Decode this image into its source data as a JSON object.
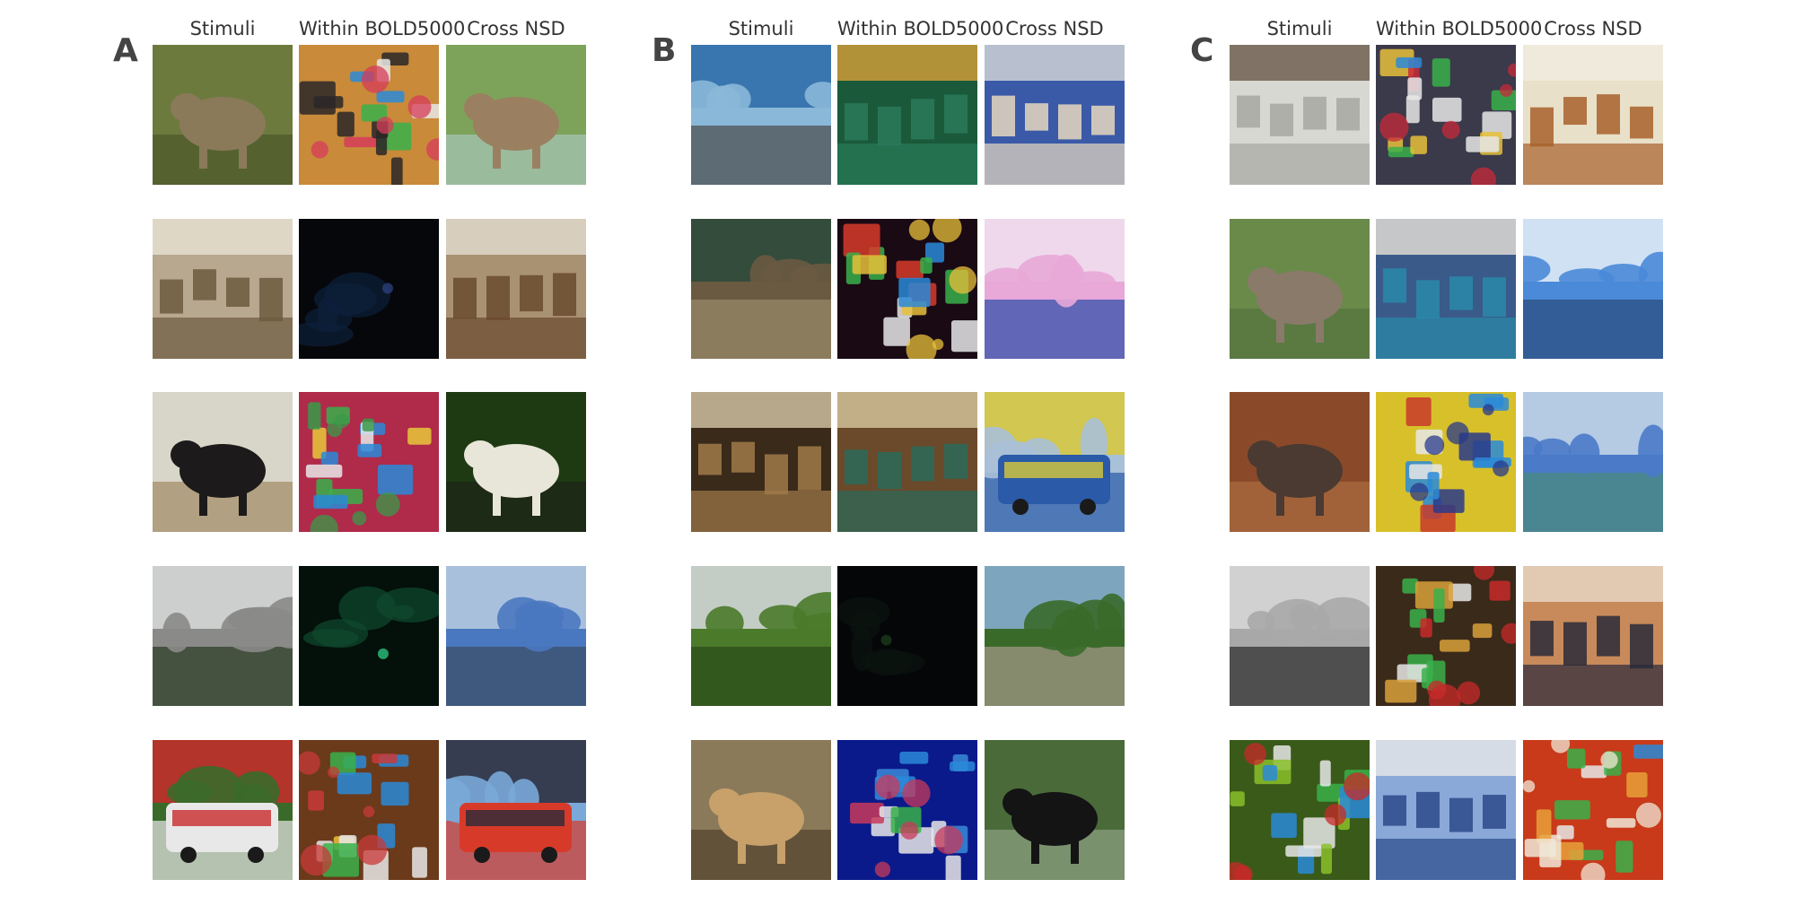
{
  "panels": [
    {
      "letter": "A",
      "headers": [
        "Stimuli",
        "Within BOLD5000",
        "Cross NSD"
      ],
      "rows": [
        [
          {
            "icon": "elephant-photo",
            "bg": "#6d7a3e",
            "fg": "#8a7a5a",
            "accent": "#3e4a22",
            "kind": "animal"
          },
          {
            "icon": "horse-toys-photo",
            "bg": "#c98a3a",
            "fg": "#2a2628",
            "accent": "#d63b5a",
            "kind": "clutter"
          },
          {
            "icon": "horses-field-photo",
            "bg": "#7da35a",
            "fg": "#9a8060",
            "accent": "#b9d3e0",
            "kind": "animal"
          }
        ],
        [
          {
            "icon": "classroom-photo",
            "bg": "#b8a890",
            "fg": "#6c5a3e",
            "accent": "#e8e2d2",
            "kind": "room"
          },
          {
            "icon": "dark-room-photo",
            "bg": "#06070b",
            "fg": "#0d1f3a",
            "accent": "#2a3e7a",
            "kind": "dark"
          },
          {
            "icon": "hall-interior-photo",
            "bg": "#a89272",
            "fg": "#6a4a2e",
            "accent": "#e2ddd0",
            "kind": "room"
          }
        ],
        [
          {
            "icon": "dog-photo",
            "bg": "#d8d6c8",
            "fg": "#1c1a1a",
            "accent": "#8a6a3a",
            "kind": "animal"
          },
          {
            "icon": "colorful-objects-photo",
            "bg": "#b02a4a",
            "fg": "#e8c83a",
            "accent": "#3a9a4a",
            "kind": "clutter"
          },
          {
            "icon": "zebra-photo",
            "bg": "#1e3a12",
            "fg": "#e8e6d8",
            "accent": "#1a1a1a",
            "kind": "animal"
          }
        ],
        [
          {
            "icon": "street-photo",
            "bg": "#8a8a88",
            "fg": "#2a3a22",
            "accent": "#d8dada",
            "kind": "street"
          },
          {
            "icon": "dark-green-room-photo",
            "bg": "#04100a",
            "fg": "#0e4a2e",
            "accent": "#2ac07a",
            "kind": "dark"
          },
          {
            "icon": "waterfront-photo",
            "bg": "#4a78c0",
            "fg": "#3a4a62",
            "accent": "#b8cce0",
            "kind": "street"
          }
        ],
        [
          {
            "icon": "bus-photo",
            "bg": "#3a6a2a",
            "fg": "#e8e8e8",
            "accent": "#c82a2a",
            "kind": "vehicle"
          },
          {
            "icon": "shop-interior-photo",
            "bg": "#6a3a1a",
            "fg": "#e8c03a",
            "accent": "#c83a3a",
            "kind": "clutter"
          },
          {
            "icon": "fire-truck-photo",
            "bg": "#7aa8d8",
            "fg": "#d83a2a",
            "accent": "#2a2a3a",
            "kind": "vehicle"
          }
        ]
      ]
    },
    {
      "letter": "B",
      "headers": [
        "Stimuli",
        "Within BOLD5000",
        "Cross NSD"
      ],
      "rows": [
        [
          {
            "icon": "cyclist-palms-photo",
            "bg": "#8ab8d8",
            "fg": "#4a4a4a",
            "accent": "#2a6aa8",
            "kind": "street"
          },
          {
            "icon": "green-floor-photo",
            "bg": "#1a5a3a",
            "fg": "#2a7a5a",
            "accent": "#d8a03a",
            "kind": "room"
          },
          {
            "icon": "lab-people-photo",
            "bg": "#3a5aa8",
            "fg": "#e8d8c0",
            "accent": "#d8d8d8",
            "kind": "room"
          }
        ],
        [
          {
            "icon": "skatepark-photo",
            "bg": "#6a5a42",
            "fg": "#9a8a6a",
            "accent": "#2a4a3a",
            "kind": "street"
          },
          {
            "icon": "bright-display-photo",
            "bg": "#1a0a14",
            "fg": "#d83a2a",
            "accent": "#e8c03a",
            "kind": "clutter"
          },
          {
            "icon": "pink-beach-photo",
            "bg": "#e8a8d8",
            "fg": "#2a4aa8",
            "accent": "#f0e0f0",
            "kind": "street"
          }
        ],
        [
          {
            "icon": "barrel-cellar-photo",
            "bg": "#3a2a1a",
            "fg": "#a07a4a",
            "accent": "#d8c8a8",
            "kind": "room"
          },
          {
            "icon": "cafe-interior-photo",
            "bg": "#6a4a2a",
            "fg": "#2a6a5a",
            "accent": "#d8c8a0",
            "kind": "room"
          },
          {
            "icon": "train-photo",
            "bg": "#a8c0d8",
            "fg": "#2a5aa8",
            "accent": "#d8c83a",
            "kind": "vehicle"
          }
        ],
        [
          {
            "icon": "meadow-photo",
            "bg": "#4a7a2a",
            "fg": "#2a4a1a",
            "accent": "#d8dae0",
            "kind": "field"
          },
          {
            "icon": "dark-scene-photo",
            "bg": "#050608",
            "fg": "#0c1410",
            "accent": "#1a3a1a",
            "kind": "dark"
          },
          {
            "icon": "tower-park-photo",
            "bg": "#3a6a2a",
            "fg": "#a89a8a",
            "accent": "#8ab0d8",
            "kind": "field"
          }
        ],
        [
          {
            "icon": "giraffes-photo",
            "bg": "#8a7a5a",
            "fg": "#c8a06a",
            "accent": "#3a2a1a",
            "kind": "animal"
          },
          {
            "icon": "noisy-blue-photo",
            "bg": "#0a1a8a",
            "fg": "#3a8ad8",
            "accent": "#c83a5a",
            "kind": "clutter"
          },
          {
            "icon": "bear-yard-photo",
            "bg": "#4a6a3a",
            "fg": "#141414",
            "accent": "#a8b8a0",
            "kind": "animal"
          }
        ]
      ]
    },
    {
      "letter": "C",
      "headers": [
        "Stimuli",
        "Within BOLD5000",
        "Cross NSD"
      ],
      "rows": [
        [
          {
            "icon": "bathroom-photo",
            "bg": "#d8d8d2",
            "fg": "#a8a8a2",
            "accent": "#6a5a4a",
            "kind": "room"
          },
          {
            "icon": "kitchen-shop-photo",
            "bg": "#3a3a4a",
            "fg": "#e8c03a",
            "accent": "#c82a3a",
            "kind": "clutter"
          },
          {
            "icon": "kitchen-cabinets-photo",
            "bg": "#e8e0c8",
            "fg": "#a8602a",
            "accent": "#f0ece0",
            "kind": "room"
          }
        ],
        [
          {
            "icon": "coyote-photo",
            "bg": "#6a8a4a",
            "fg": "#8a7a6a",
            "accent": "#4a6a3a",
            "kind": "animal"
          },
          {
            "icon": "blue-kitchen-photo",
            "bg": "#3a5a8a",
            "fg": "#2a8aa8",
            "accent": "#e8e2d8",
            "kind": "room"
          },
          {
            "icon": "lake-mountain-photo",
            "bg": "#4a8ad8",
            "fg": "#2a4a7a",
            "accent": "#e8f0f8",
            "kind": "field"
          }
        ],
        [
          {
            "icon": "warthog-photo",
            "bg": "#8a4a2a",
            "fg": "#4a3a32",
            "accent": "#b87a4a",
            "kind": "animal"
          },
          {
            "icon": "colorful-robot-photo",
            "bg": "#d8c02a",
            "fg": "#c83a2a",
            "accent": "#2a3a8a",
            "kind": "clutter"
          },
          {
            "icon": "slope-sky-photo",
            "bg": "#4a7ac8",
            "fg": "#4a8a7a",
            "accent": "#c8d8e8",
            "kind": "field"
          }
        ],
        [
          {
            "icon": "statue-photo",
            "bg": "#a8a8a8",
            "fg": "#2a2a2a",
            "accent": "#d8d8d8",
            "kind": "street"
          },
          {
            "icon": "food-stall-photo",
            "bg": "#3a2a1a",
            "fg": "#d8a03a",
            "accent": "#c82a2a",
            "kind": "clutter"
          },
          {
            "icon": "people-room-photo",
            "bg": "#c88a5a",
            "fg": "#2a2a3a",
            "accent": "#e8d8c8",
            "kind": "room"
          }
        ],
        [
          {
            "icon": "vegetables-photo",
            "bg": "#3a5a1a",
            "fg": "#8ac02a",
            "accent": "#c82a2a",
            "kind": "clutter"
          },
          {
            "icon": "market-photo",
            "bg": "#8aa8d8",
            "fg": "#2a4a8a",
            "accent": "#e8e8e8",
            "kind": "room"
          },
          {
            "icon": "food-plate-photo",
            "bg": "#c83a1a",
            "fg": "#e8a03a",
            "accent": "#f0e8d8",
            "kind": "clutter"
          }
        ]
      ]
    }
  ]
}
